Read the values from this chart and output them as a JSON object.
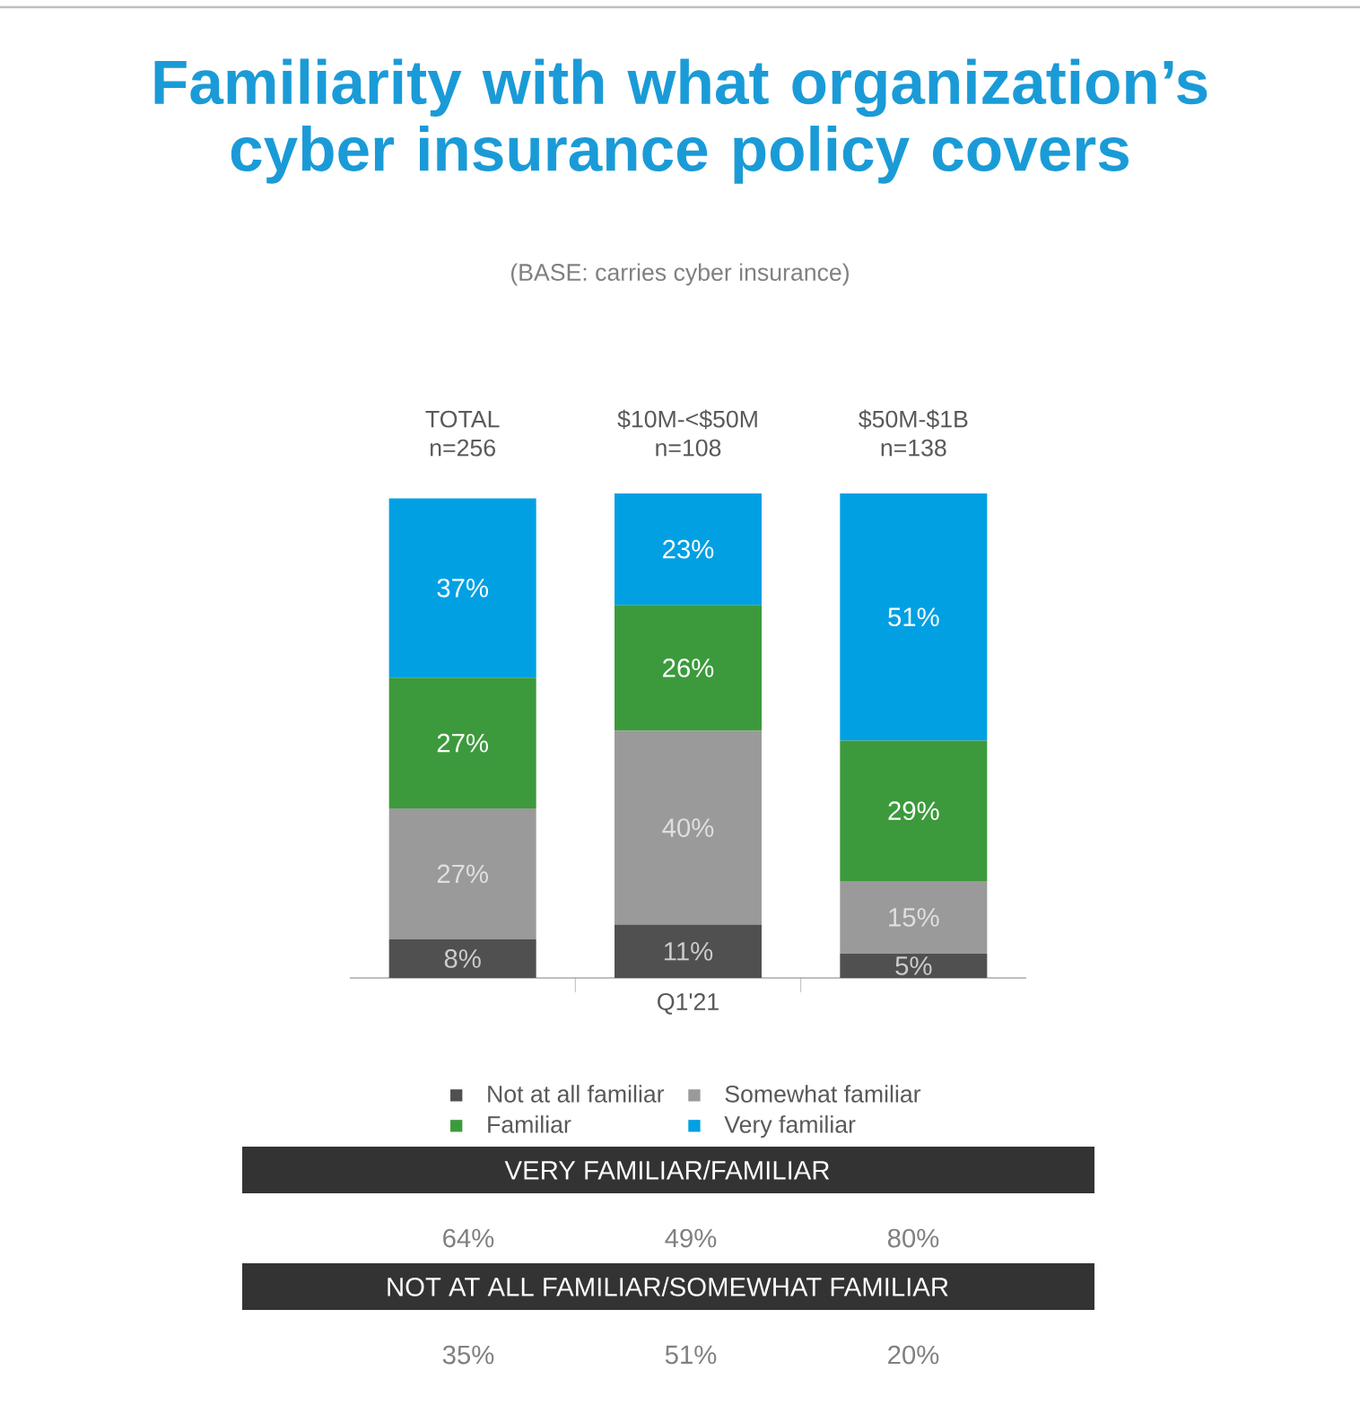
{
  "chart_data": {
    "type": "bar",
    "title": "Familiarity with what organization’s cyber insurance policy covers",
    "subtitle": "(BASE: carries cyber insurance)",
    "categories": [
      "TOTAL n=256",
      "$10M-<$50M n=108",
      "$50M-$1B n=138"
    ],
    "xlabel": "Q1'21",
    "stacked": true,
    "legend": "bottom",
    "series": [
      {
        "name": "Not at all familiar",
        "color": "#505050",
        "values": [
          8,
          11,
          5
        ],
        "value_labels": [
          "8%",
          "11%",
          "5%"
        ]
      },
      {
        "name": "Somewhat familiar",
        "color": "#9a9a9a",
        "values": [
          27,
          40,
          15
        ],
        "value_labels": [
          "27%",
          "40%",
          "15%"
        ]
      },
      {
        "name": "Familiar",
        "color": "#3c9a3c",
        "values": [
          27,
          26,
          29
        ],
        "value_labels": [
          "27%",
          "26%",
          "29%"
        ]
      },
      {
        "name": "Very familiar",
        "color": "#00a0e3",
        "values": [
          37,
          23,
          51
        ],
        "value_labels": [
          "37%",
          "23%",
          "51%"
        ]
      }
    ],
    "annotations": [
      "VERY FAMILIAR/FAMILIAR",
      "64%",
      "49%",
      "80%",
      "NOT AT ALL FAMILIAR/SOMEWHAT FAMILIAR",
      "35%",
      "51%",
      "20%"
    ]
  }
}
